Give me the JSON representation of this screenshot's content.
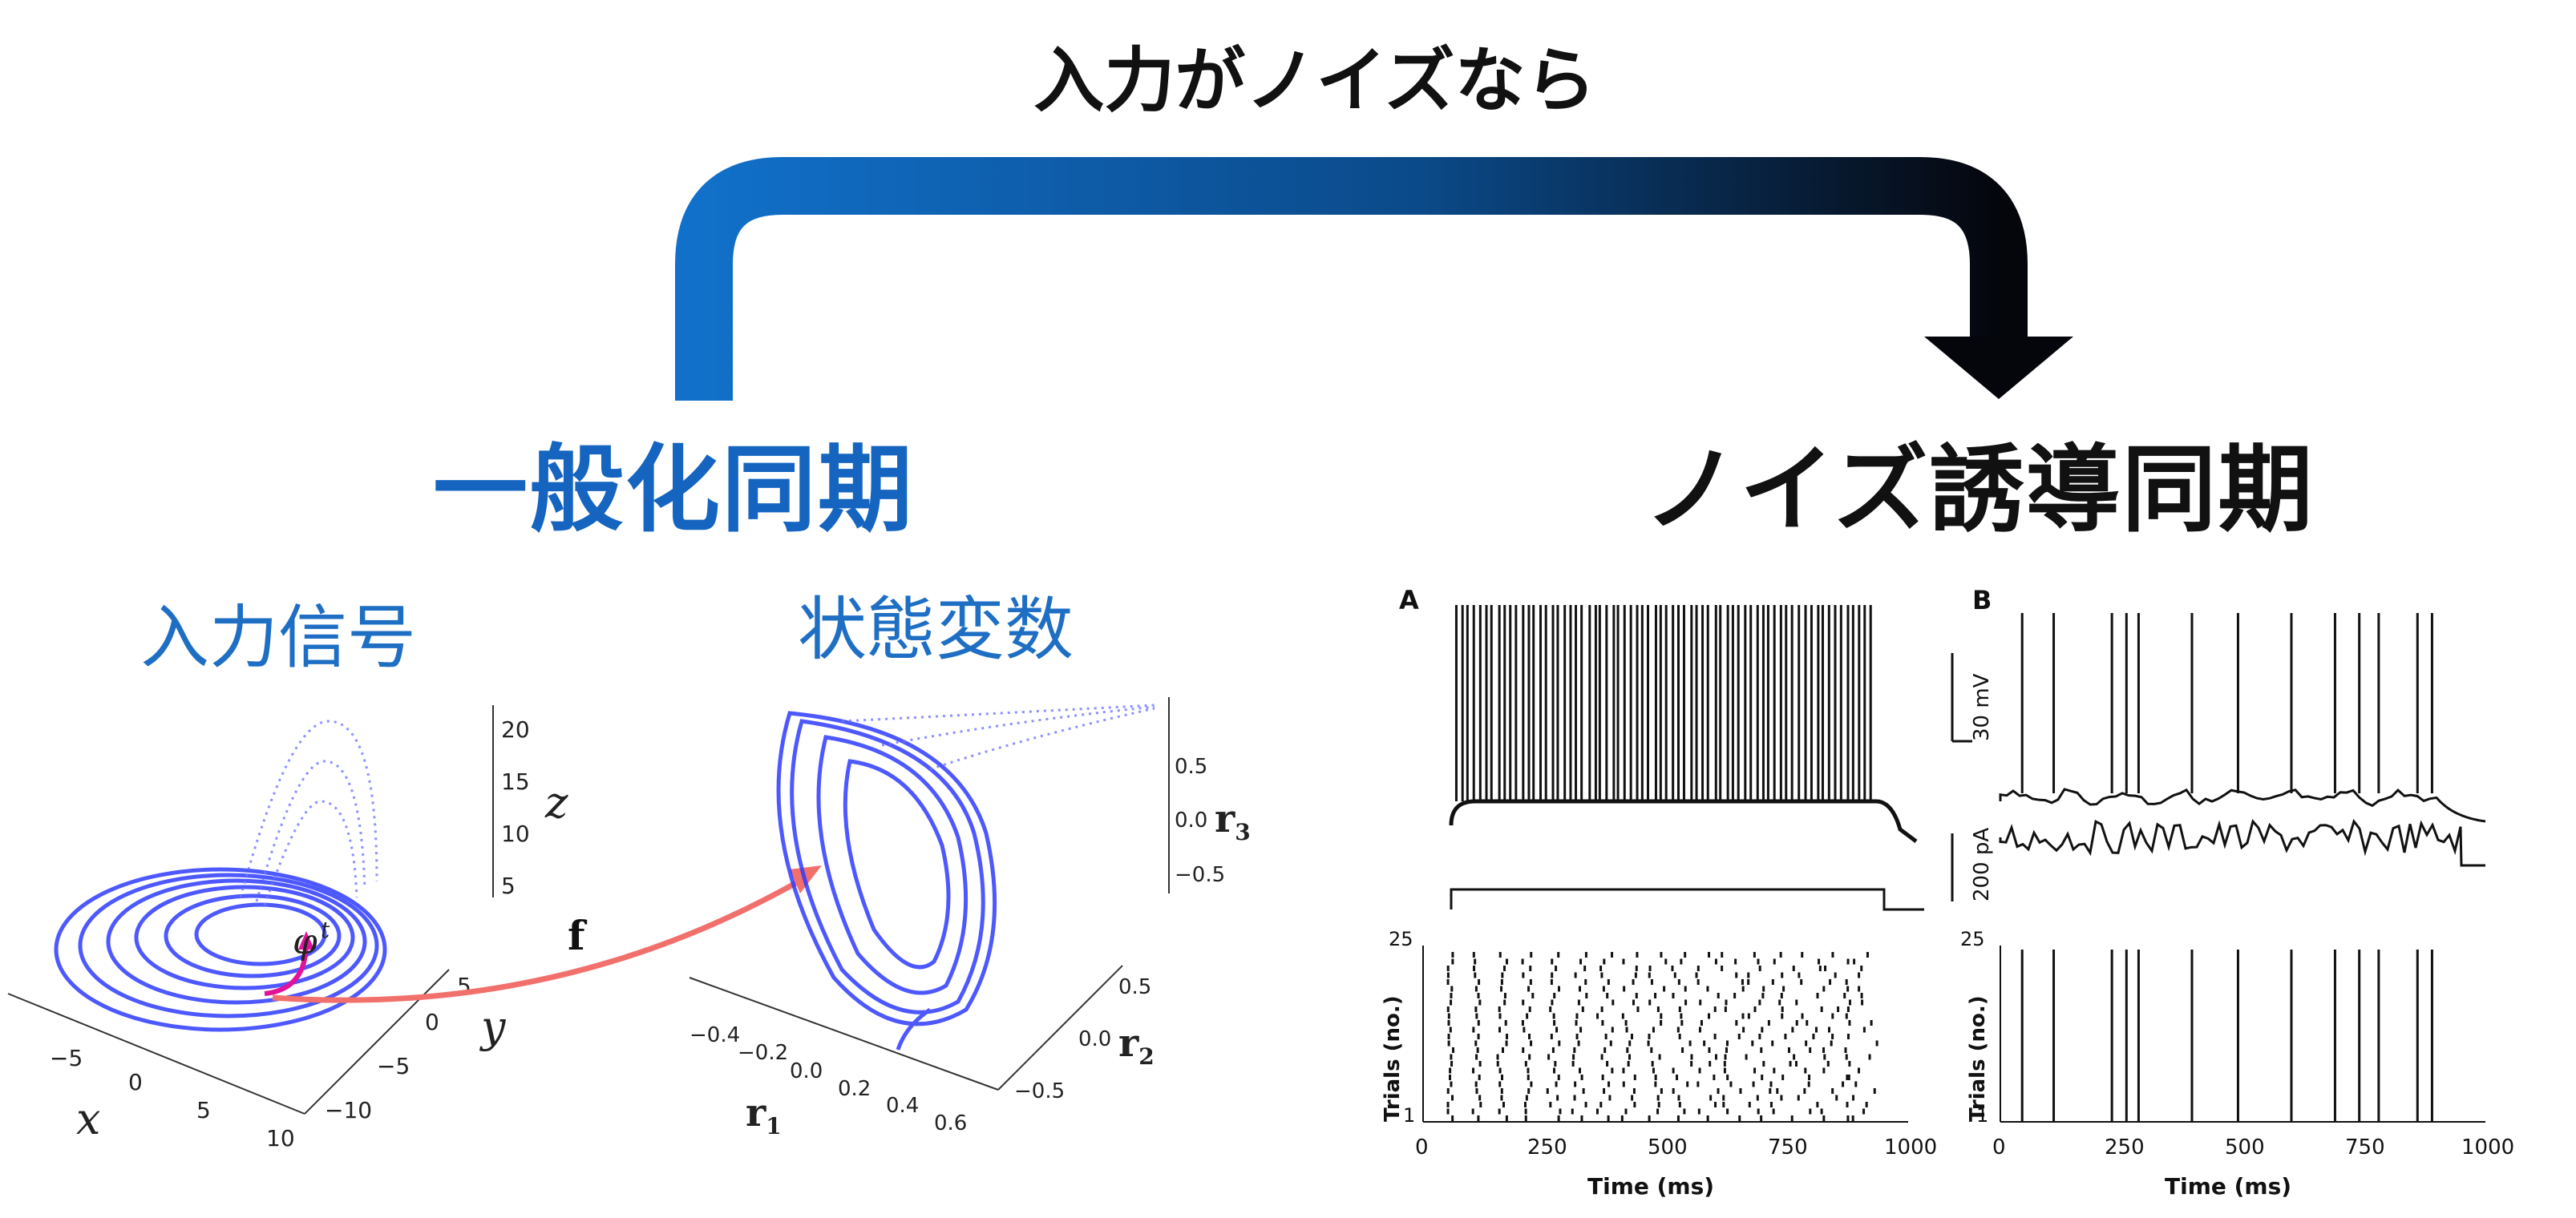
{
  "header": {
    "arrow_label": "入力がノイズなら",
    "left_heading": "一般化同期",
    "right_heading": "ノイズ誘導同期"
  },
  "left_panel": {
    "input_label": "入力信号",
    "state_label": "状態変数",
    "map_label": "f",
    "flow_label": "φ",
    "flow_sup": "t",
    "plot1": {
      "x_label": "x",
      "y_label": "y",
      "z_label": "z",
      "x_ticks": [
        "−5",
        "0",
        "5",
        "10"
      ],
      "y_ticks": [
        "5",
        "0",
        "−5",
        "−10"
      ],
      "z_ticks": [
        "20",
        "15",
        "10",
        "5"
      ]
    },
    "plot2": {
      "r1_label": "r",
      "r1_sub": "1",
      "r2_label": "r",
      "r2_sub": "2",
      "r3_label": "r",
      "r3_sub": "3",
      "r1_ticks": [
        "−0.4",
        "−0.2",
        "0.0",
        "0.2",
        "0.4",
        "0.6"
      ],
      "r2_ticks": [
        "0.5",
        "0.0",
        "−0.5"
      ],
      "r3_ticks": [
        "0.5",
        "0.0",
        "−0.5"
      ]
    }
  },
  "right_panel": {
    "panel_a": "A",
    "panel_b": "B",
    "scale_voltage": "30 mV",
    "scale_current": "200 pA",
    "raster_ylabel": "Trials (no.)",
    "raster_yticks": [
      "25",
      "1"
    ],
    "time_label": "Time (ms)",
    "time_ticks": [
      "0",
      "250",
      "500",
      "750",
      "1000"
    ],
    "spike_times_b": [
      45,
      110,
      230,
      260,
      285,
      395,
      490,
      600,
      690,
      740,
      780,
      860,
      890
    ]
  },
  "colors": {
    "arrow_start": "#1565c0",
    "arrow_end": "#0a0a12",
    "heading_blue": "#1565c0",
    "attractor": "#2f3bff",
    "red_arrow": "#f2706b",
    "magenta": "#e0139a"
  }
}
